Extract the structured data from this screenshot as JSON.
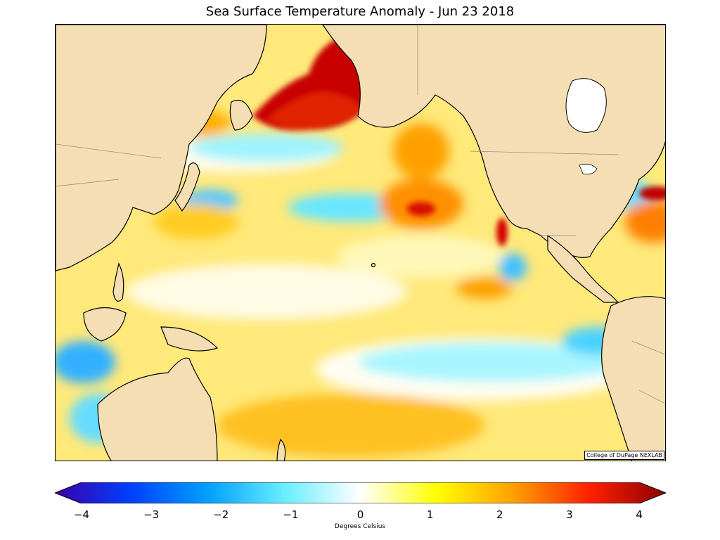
{
  "title": "Sea Surface Temperature Anomaly - Jun 23 2018",
  "credit": "College of DuPage NEXLAB",
  "colorbar": {
    "label": "Degrees Celsius",
    "min": -4,
    "max": 4,
    "ticks": [
      {
        "value": -4,
        "label": "−4"
      },
      {
        "value": -3,
        "label": "−3"
      },
      {
        "value": -2,
        "label": "−2"
      },
      {
        "value": -1,
        "label": "−1"
      },
      {
        "value": 0,
        "label": "0"
      },
      {
        "value": 1,
        "label": "1"
      },
      {
        "value": 2,
        "label": "2"
      },
      {
        "value": 3,
        "label": "3"
      },
      {
        "value": 4,
        "label": "4"
      }
    ],
    "colors": [
      "#3a00a8",
      "#0040ff",
      "#00a0ff",
      "#66eeff",
      "#ffffff",
      "#ffff00",
      "#ffa000",
      "#ff2000",
      "#8b0000"
    ]
  },
  "map": {
    "land_color": "#f5deb3",
    "ocean_base": "#ffe97a"
  }
}
